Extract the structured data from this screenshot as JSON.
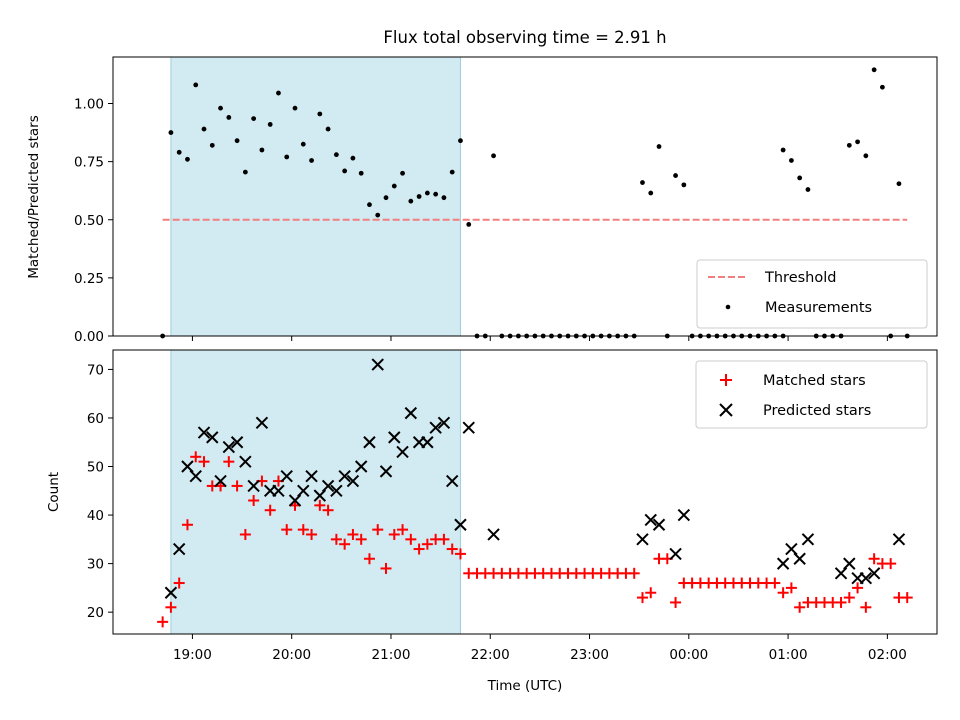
{
  "chart_data": [
    {
      "type": "scatter",
      "panel": "top",
      "title": "Flux total observing time = 2.91 h",
      "xlabel": "",
      "ylabel": "Matched/Predicted stars",
      "ylim": [
        0.0,
        1.2
      ],
      "y_ticks": [
        0.0,
        0.25,
        0.5,
        0.75,
        1.0
      ],
      "y_tick_labels": [
        "0.00",
        "0.25",
        "0.50",
        "0.75",
        "1.00"
      ],
      "shaded_interval": [
        "18:47",
        "21:42"
      ],
      "shaded_color": "#add8e6",
      "threshold": {
        "name": "Threshold",
        "value": 0.5,
        "x_range": [
          "18:42",
          "02:12"
        ],
        "color": "#f08080"
      },
      "legend": {
        "position": "lower-right",
        "entries": [
          "Threshold",
          "Measurements"
        ]
      },
      "series": [
        {
          "name": "Measurements",
          "color": "#000000",
          "points": [
            [
              "18:42",
              0.0
            ],
            [
              "18:47",
              0.875
            ],
            [
              "18:52",
              0.79
            ],
            [
              "18:57",
              0.76
            ],
            [
              "19:02",
              1.08
            ],
            [
              "19:07",
              0.89
            ],
            [
              "19:12",
              0.82
            ],
            [
              "19:17",
              0.98
            ],
            [
              "19:22",
              0.94
            ],
            [
              "19:27",
              0.84
            ],
            [
              "19:32",
              0.705
            ],
            [
              "19:37",
              0.935
            ],
            [
              "19:42",
              0.8
            ],
            [
              "19:47",
              0.91
            ],
            [
              "19:52",
              1.045
            ],
            [
              "19:57",
              0.77
            ],
            [
              "20:02",
              0.98
            ],
            [
              "20:07",
              0.825
            ],
            [
              "20:12",
              0.755
            ],
            [
              "20:17",
              0.955
            ],
            [
              "20:22",
              0.89
            ],
            [
              "20:27",
              0.78
            ],
            [
              "20:32",
              0.71
            ],
            [
              "20:37",
              0.765
            ],
            [
              "20:42",
              0.7
            ],
            [
              "20:47",
              0.565
            ],
            [
              "20:52",
              0.52
            ],
            [
              "20:57",
              0.595
            ],
            [
              "21:02",
              0.645
            ],
            [
              "21:07",
              0.7
            ],
            [
              "21:12",
              0.58
            ],
            [
              "21:17",
              0.6
            ],
            [
              "21:22",
              0.615
            ],
            [
              "21:27",
              0.61
            ],
            [
              "21:32",
              0.595
            ],
            [
              "21:37",
              0.705
            ],
            [
              "21:42",
              0.84
            ],
            [
              "21:47",
              0.48
            ],
            [
              "21:52",
              0.0
            ],
            [
              "21:57",
              0.0
            ],
            [
              "22:02",
              0.775
            ],
            [
              "22:07",
              0.0
            ],
            [
              "22:12",
              0.0
            ],
            [
              "22:17",
              0.0
            ],
            [
              "22:22",
              0.0
            ],
            [
              "22:27",
              0.0
            ],
            [
              "22:32",
              0.0
            ],
            [
              "22:37",
              0.0
            ],
            [
              "22:42",
              0.0
            ],
            [
              "22:47",
              0.0
            ],
            [
              "22:52",
              0.0
            ],
            [
              "22:57",
              0.0
            ],
            [
              "23:02",
              0.0
            ],
            [
              "23:07",
              0.0
            ],
            [
              "23:12",
              0.0
            ],
            [
              "23:17",
              0.0
            ],
            [
              "23:22",
              0.0
            ],
            [
              "23:27",
              0.0
            ],
            [
              "23:32",
              0.66
            ],
            [
              "23:37",
              0.615
            ],
            [
              "23:42",
              0.815
            ],
            [
              "23:47",
              0.0
            ],
            [
              "23:52",
              0.69
            ],
            [
              "23:57",
              0.65
            ],
            [
              "00:02",
              0.0
            ],
            [
              "00:07",
              0.0
            ],
            [
              "00:12",
              0.0
            ],
            [
              "00:17",
              0.0
            ],
            [
              "00:22",
              0.0
            ],
            [
              "00:27",
              0.0
            ],
            [
              "00:32",
              0.0
            ],
            [
              "00:37",
              0.0
            ],
            [
              "00:42",
              0.0
            ],
            [
              "00:47",
              0.0
            ],
            [
              "00:52",
              0.0
            ],
            [
              "00:57",
              0.0
            ],
            [
              "00:57",
              0.8
            ],
            [
              "01:02",
              0.755
            ],
            [
              "01:07",
              0.68
            ],
            [
              "01:12",
              0.63
            ],
            [
              "01:17",
              0.0
            ],
            [
              "01:22",
              0.0
            ],
            [
              "01:27",
              0.0
            ],
            [
              "01:32",
              0.0
            ],
            [
              "01:37",
              0.82
            ],
            [
              "01:42",
              0.835
            ],
            [
              "01:47",
              0.775
            ],
            [
              "01:52",
              1.145
            ],
            [
              "01:57",
              1.07
            ],
            [
              "02:02",
              0.0
            ],
            [
              "02:07",
              0.655
            ],
            [
              "02:12",
              0.0
            ]
          ]
        }
      ]
    },
    {
      "type": "scatter",
      "panel": "bottom",
      "title": "",
      "xlabel": "Time (UTC)",
      "ylabel": "Count",
      "ylim": [
        15.5,
        74
      ],
      "y_ticks": [
        20,
        30,
        40,
        50,
        60,
        70
      ],
      "x_tick_labels": [
        "19:00",
        "20:00",
        "21:00",
        "22:00",
        "23:00",
        "00:00",
        "01:00",
        "02:00"
      ],
      "shaded_interval": [
        "18:47",
        "21:42"
      ],
      "legend": {
        "position": "upper-right",
        "entries": [
          "Matched stars",
          "Predicted stars"
        ]
      },
      "series": [
        {
          "name": "Matched stars",
          "marker": "+",
          "color": "#ff0000",
          "points": [
            [
              "18:42",
              18
            ],
            [
              "18:47",
              21
            ],
            [
              "18:52",
              26
            ],
            [
              "18:57",
              38
            ],
            [
              "19:02",
              52
            ],
            [
              "19:07",
              51
            ],
            [
              "19:12",
              46
            ],
            [
              "19:17",
              46
            ],
            [
              "19:22",
              51
            ],
            [
              "19:27",
              46
            ],
            [
              "19:32",
              36
            ],
            [
              "19:37",
              43
            ],
            [
              "19:42",
              47
            ],
            [
              "19:47",
              41
            ],
            [
              "19:52",
              47
            ],
            [
              "19:57",
              37
            ],
            [
              "20:02",
              42
            ],
            [
              "20:07",
              37
            ],
            [
              "20:12",
              36
            ],
            [
              "20:17",
              42
            ],
            [
              "20:22",
              41
            ],
            [
              "20:27",
              35
            ],
            [
              "20:32",
              34
            ],
            [
              "20:37",
              36
            ],
            [
              "20:42",
              35
            ],
            [
              "20:47",
              31
            ],
            [
              "20:52",
              37
            ],
            [
              "20:57",
              29
            ],
            [
              "21:02",
              36
            ],
            [
              "21:07",
              37
            ],
            [
              "21:12",
              35
            ],
            [
              "21:17",
              33
            ],
            [
              "21:22",
              34
            ],
            [
              "21:27",
              35
            ],
            [
              "21:32",
              35
            ],
            [
              "21:37",
              33
            ],
            [
              "21:42",
              32
            ],
            [
              "21:47",
              28
            ],
            [
              "21:52",
              28
            ],
            [
              "21:57",
              28
            ],
            [
              "22:02",
              28
            ],
            [
              "22:07",
              28
            ],
            [
              "22:12",
              28
            ],
            [
              "22:17",
              28
            ],
            [
              "22:22",
              28
            ],
            [
              "22:27",
              28
            ],
            [
              "22:32",
              28
            ],
            [
              "22:37",
              28
            ],
            [
              "22:42",
              28
            ],
            [
              "22:47",
              28
            ],
            [
              "22:52",
              28
            ],
            [
              "22:57",
              28
            ],
            [
              "23:02",
              28
            ],
            [
              "23:07",
              28
            ],
            [
              "23:12",
              28
            ],
            [
              "23:17",
              28
            ],
            [
              "23:22",
              28
            ],
            [
              "23:27",
              28
            ],
            [
              "23:32",
              23
            ],
            [
              "23:37",
              24
            ],
            [
              "23:42",
              31
            ],
            [
              "23:47",
              31
            ],
            [
              "23:52",
              22
            ],
            [
              "23:57",
              26
            ],
            [
              "00:02",
              26
            ],
            [
              "00:07",
              26
            ],
            [
              "00:12",
              26
            ],
            [
              "00:17",
              26
            ],
            [
              "00:22",
              26
            ],
            [
              "00:27",
              26
            ],
            [
              "00:32",
              26
            ],
            [
              "00:37",
              26
            ],
            [
              "00:42",
              26
            ],
            [
              "00:47",
              26
            ],
            [
              "00:52",
              26
            ],
            [
              "00:57",
              24
            ],
            [
              "01:02",
              25
            ],
            [
              "01:07",
              21
            ],
            [
              "01:12",
              22
            ],
            [
              "01:17",
              22
            ],
            [
              "01:22",
              22
            ],
            [
              "01:27",
              22
            ],
            [
              "01:32",
              22
            ],
            [
              "01:37",
              23
            ],
            [
              "01:42",
              25
            ],
            [
              "01:47",
              21
            ],
            [
              "01:52",
              31
            ],
            [
              "01:57",
              30
            ],
            [
              "02:02",
              30
            ],
            [
              "02:07",
              23
            ],
            [
              "02:12",
              23
            ]
          ]
        },
        {
          "name": "Predicted stars",
          "marker": "x",
          "color": "#000000",
          "points": [
            [
              "18:47",
              24
            ],
            [
              "18:52",
              33
            ],
            [
              "18:57",
              50
            ],
            [
              "19:02",
              48
            ],
            [
              "19:07",
              57
            ],
            [
              "19:12",
              56
            ],
            [
              "19:17",
              47
            ],
            [
              "19:22",
              54
            ],
            [
              "19:27",
              55
            ],
            [
              "19:32",
              51
            ],
            [
              "19:37",
              46
            ],
            [
              "19:42",
              59
            ],
            [
              "19:47",
              45
            ],
            [
              "19:52",
              45
            ],
            [
              "19:57",
              48
            ],
            [
              "20:02",
              43
            ],
            [
              "20:07",
              45
            ],
            [
              "20:12",
              48
            ],
            [
              "20:17",
              44
            ],
            [
              "20:22",
              46
            ],
            [
              "20:27",
              45
            ],
            [
              "20:32",
              48
            ],
            [
              "20:37",
              47
            ],
            [
              "20:42",
              50
            ],
            [
              "20:47",
              55
            ],
            [
              "20:52",
              71
            ],
            [
              "20:57",
              49
            ],
            [
              "21:02",
              56
            ],
            [
              "21:07",
              53
            ],
            [
              "21:12",
              61
            ],
            [
              "21:17",
              55
            ],
            [
              "21:22",
              55
            ],
            [
              "21:27",
              58
            ],
            [
              "21:32",
              59
            ],
            [
              "21:37",
              47
            ],
            [
              "21:42",
              38
            ],
            [
              "21:47",
              58
            ],
            [
              "22:02",
              36
            ],
            [
              "23:32",
              35
            ],
            [
              "23:37",
              39
            ],
            [
              "23:42",
              38
            ],
            [
              "23:52",
              32
            ],
            [
              "23:57",
              40
            ],
            [
              "00:57",
              30
            ],
            [
              "01:02",
              33
            ],
            [
              "01:07",
              31
            ],
            [
              "01:12",
              35
            ],
            [
              "01:32",
              28
            ],
            [
              "01:37",
              30
            ],
            [
              "01:42",
              27
            ],
            [
              "01:47",
              27
            ],
            [
              "01:52",
              28
            ],
            [
              "02:07",
              35
            ]
          ]
        }
      ]
    }
  ]
}
